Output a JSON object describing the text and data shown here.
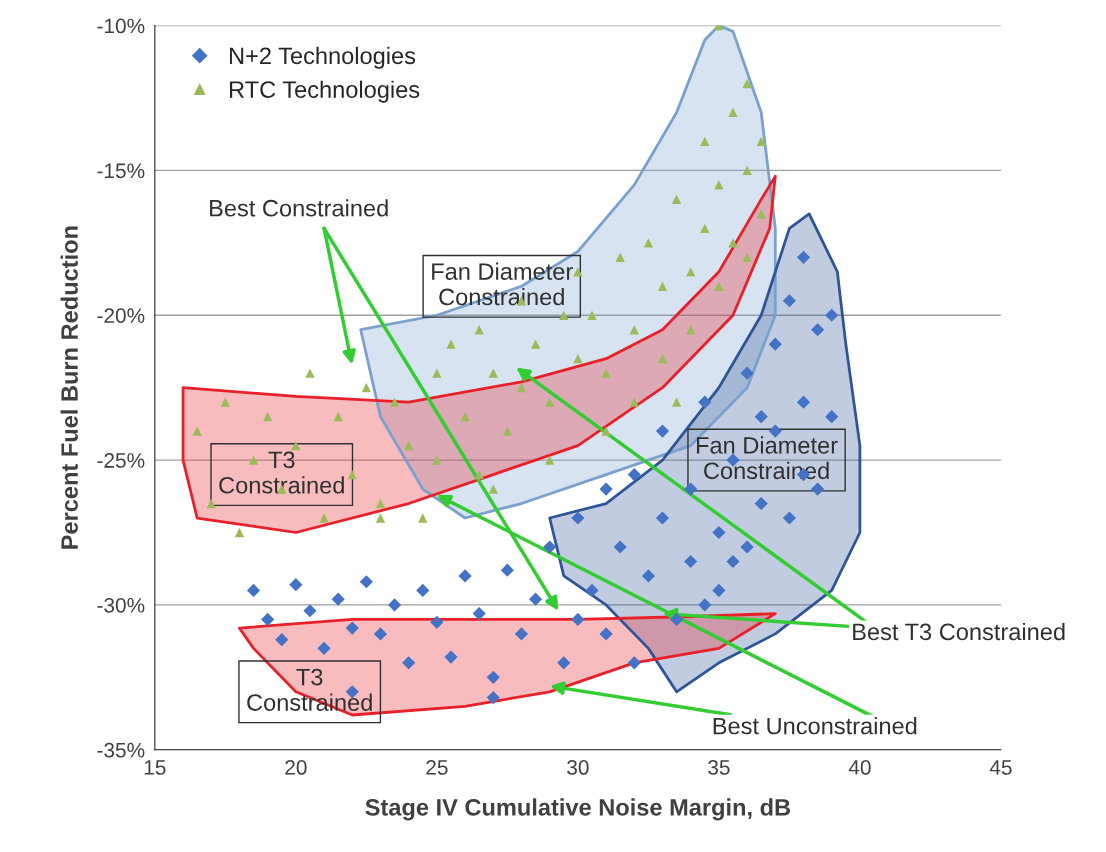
{
  "chart_data": {
    "type": "scatter",
    "xlabel": "Stage IV Cumulative Noise Margin, dB",
    "ylabel": "Percent Fuel Burn Reduction",
    "xlim": [
      15,
      45
    ],
    "xticks": [
      15,
      20,
      25,
      30,
      35,
      40,
      45
    ],
    "ylim": [
      -35,
      -10
    ],
    "yticks": [
      {
        "value": -35,
        "label": "-35%"
      },
      {
        "value": -30,
        "label": "-30%"
      },
      {
        "value": -25,
        "label": "-25%"
      },
      {
        "value": -20,
        "label": "-20%"
      },
      {
        "value": -15,
        "label": "-15%"
      },
      {
        "value": -10,
        "label": "-10%"
      }
    ],
    "grid": "y",
    "legend": "top left",
    "series": [
      {
        "type": "area",
        "color": "#7aa0cd",
        "x": [
          22.3,
          25,
          28,
          30,
          32,
          33.5,
          34.5,
          35,
          35.5,
          36.5,
          37,
          37,
          36,
          34,
          31,
          28,
          26,
          24.5,
          23,
          22.3
        ],
        "values": [
          -20.5,
          -20,
          -19,
          -17.8,
          -15.5,
          -13,
          -10.5,
          -10,
          -10.2,
          -13,
          -17,
          -20,
          -22.5,
          -24.5,
          -25.5,
          -26.5,
          -27,
          -26,
          -23.5,
          -20.5
        ]
      },
      {
        "type": "area",
        "color": "#e8202a",
        "x": [
          16,
          20,
          24,
          28,
          31,
          33,
          35,
          36.5,
          37,
          36.8,
          35.5,
          33,
          30,
          27,
          24,
          20,
          16.5,
          16,
          16
        ],
        "values": [
          -22.5,
          -22.8,
          -23,
          -22.3,
          -21.5,
          -20.5,
          -18.5,
          -16,
          -15.2,
          -17,
          -20,
          -22.5,
          -24.5,
          -25.5,
          -26.5,
          -27.5,
          -27,
          -25,
          -22.5
        ]
      },
      {
        "type": "area",
        "color": "#2f5597",
        "x": [
          29,
          31,
          33,
          35,
          36.5,
          37.5,
          38.2,
          39.2,
          39.5,
          40,
          40,
          39,
          37,
          35,
          33.5,
          32.5,
          31,
          29.5,
          29
        ],
        "values": [
          -27,
          -26.5,
          -25,
          -22.5,
          -20,
          -17,
          -16.5,
          -18.5,
          -21,
          -24.5,
          -27.5,
          -29.5,
          -31,
          -32,
          -33,
          -31.5,
          -30,
          -29,
          -27
        ]
      },
      {
        "type": "area",
        "color": "#e8202a",
        "x": [
          18,
          22,
          26,
          30,
          34,
          37,
          35,
          32,
          29,
          26,
          22,
          20,
          18.5,
          18
        ],
        "values": [
          -30.8,
          -30.5,
          -30.5,
          -30.5,
          -30.4,
          -30.3,
          -31.5,
          -32,
          -33,
          -33.5,
          -33.8,
          -33,
          -31.5,
          -30.8
        ]
      },
      {
        "name": "N+2 Technologies",
        "color": "#4472c4",
        "marker": "diamond",
        "x": [
          18.5,
          19,
          19.5,
          20,
          20.5,
          21,
          21.5,
          22,
          22.5,
          23,
          23.5,
          24,
          24.5,
          25,
          25.5,
          26,
          26.5,
          27,
          27.5,
          28,
          28.5,
          29,
          29.5,
          30,
          30.5,
          31,
          31,
          31.5,
          32,
          32,
          32.5,
          33,
          33,
          33.5,
          34,
          34,
          34.5,
          35,
          35,
          35.5,
          36,
          36,
          36.5,
          37,
          37,
          37.5,
          38,
          38,
          38,
          38.5,
          38.5,
          39,
          39,
          37.5,
          36.5,
          35.5,
          34.5,
          30,
          27,
          22
        ],
        "values": [
          -29.5,
          -30.5,
          -31.2,
          -29.3,
          -30.2,
          -31.5,
          -29.8,
          -30.8,
          -29.2,
          -31,
          -30,
          -32,
          -29.5,
          -30.6,
          -31.8,
          -29,
          -30.3,
          -32.5,
          -28.8,
          -31,
          -29.8,
          -28,
          -32,
          -27,
          -29.5,
          -26,
          -31,
          -28,
          -32,
          -25.5,
          -29,
          -27,
          -24,
          -30.5,
          -26,
          -28.5,
          -23,
          -27.5,
          -29.5,
          -25,
          -22,
          -28,
          -26.5,
          -24,
          -21,
          -27,
          -18,
          -23,
          -25.5,
          -20.5,
          -26,
          -20,
          -23.5,
          -19.5,
          -23.5,
          -28.5,
          -30,
          -30.5,
          -33.2,
          -33
        ]
      },
      {
        "name": "RTC Technologies",
        "color": "#9bbb59",
        "marker": "triangle",
        "x": [
          16.5,
          17,
          17.5,
          18,
          18.5,
          19,
          19.5,
          20,
          20.5,
          21,
          21.5,
          22,
          22.5,
          23,
          23.5,
          24,
          24.5,
          25,
          25,
          25.5,
          26,
          26.5,
          26.5,
          27,
          27.5,
          28,
          28,
          28.5,
          29,
          29.5,
          30,
          30,
          30.5,
          31,
          31.5,
          32,
          32,
          32.5,
          33,
          33,
          33.5,
          34,
          34,
          34.5,
          34.5,
          35,
          35,
          35,
          35.5,
          35.5,
          36,
          36,
          36,
          36.5,
          36.5,
          33.5,
          31,
          29,
          27,
          23
        ],
        "values": [
          -24,
          -26.5,
          -23,
          -27.5,
          -25,
          -23.5,
          -26,
          -24.5,
          -22,
          -27,
          -23.5,
          -25.5,
          -22.5,
          -26.5,
          -23,
          -24.5,
          -27,
          -22,
          -25,
          -21,
          -23.5,
          -20.5,
          -25.5,
          -22,
          -24,
          -19.5,
          -22.5,
          -21,
          -23,
          -20,
          -18.5,
          -21.5,
          -20,
          -22,
          -18,
          -20.5,
          -23,
          -17.5,
          -19,
          -21.5,
          -16,
          -18.5,
          -20.5,
          -14,
          -17,
          -10,
          -15.5,
          -19,
          -13,
          -17.5,
          -12,
          -15,
          -18,
          -14,
          -16.5,
          -23,
          -24,
          -25,
          -26,
          -27
        ]
      }
    ],
    "annotations": [
      "Fan Diameter\nConstrained",
      "T3\nConstrained",
      "Fan Diameter\nConstrained",
      "T3\nConstrained",
      "Best Constrained",
      {
        "text": "Best T3 Constrained",
        "x": 33,
        "y": -30.3
      },
      {
        "text": "Best Unconstrained",
        "x": 29,
        "y": -32.8
      }
    ]
  }
}
